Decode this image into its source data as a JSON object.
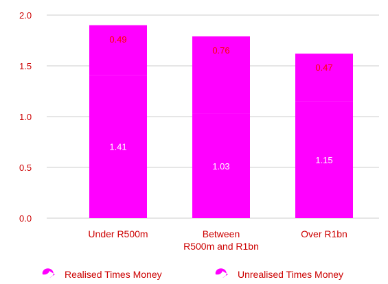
{
  "chart_data": {
    "type": "bar",
    "stacked": true,
    "categories": [
      "Under R500m",
      "Between R500m and R1bn",
      "Over R1bn"
    ],
    "category_label_lines": [
      [
        "Under R500m"
      ],
      [
        "Between",
        "R500m and R1bn"
      ],
      [
        "Over R1bn"
      ]
    ],
    "series": [
      {
        "name": "Realised Times Money",
        "values": [
          1.41,
          1.03,
          1.15
        ],
        "color": "#ff00ff"
      },
      {
        "name": "Unrealised Times Money",
        "values": [
          0.49,
          0.76,
          0.47
        ],
        "color": "#ff00ff"
      }
    ],
    "value_labels": [
      [
        "1.41",
        "1.03",
        "1.15"
      ],
      [
        "0.49",
        "0.76",
        "0.47"
      ]
    ],
    "value_label_colors": [
      "#ffffff",
      "#ff0000"
    ],
    "yticks": [
      "0.0",
      "0.5",
      "1.0",
      "1.5",
      "2.0"
    ],
    "ylim": [
      0,
      2.0
    ],
    "grid": true,
    "legend_position": "bottom",
    "text_color": "#cc0000",
    "grid_color": "#e6e6e6",
    "title": "",
    "xlabel": "",
    "ylabel": ""
  }
}
